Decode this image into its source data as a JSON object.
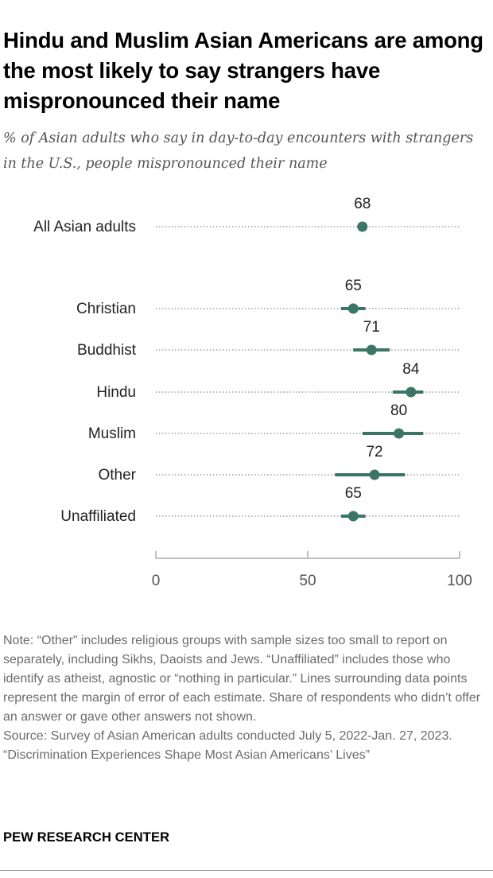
{
  "title": "Hindu and Muslim Asian Americans are among the most likely to say strangers have mispronounced their name",
  "subtitle": "% of Asian adults who say in day-to-day encounters with strangers in the U.S., people mispronounced their name",
  "chart_data": {
    "type": "scatter",
    "variant": "dot plot with margin-of-error lines",
    "categories": [
      "All Asian adults",
      "Christian",
      "Buddhist",
      "Hindu",
      "Muslim",
      "Other",
      "Unaffiliated"
    ],
    "values": [
      68,
      65,
      71,
      84,
      80,
      72,
      65
    ],
    "error_low": [
      67,
      61,
      65,
      78,
      68,
      59,
      61
    ],
    "error_high": [
      69,
      69,
      77,
      88,
      88,
      82,
      69
    ],
    "xlim": [
      0,
      100
    ],
    "xticks": [
      0,
      50,
      100
    ],
    "grid": false,
    "color": "#3b7565"
  },
  "notes": {
    "note": "Note: “Other” includes religious groups with sample sizes too small to report on separately, including Sikhs, Daoists and Jews. “Unaffiliated” includes those who identify as atheist, agnostic or “nothing in particular.” Lines surrounding data points represent the margin of error of each estimate. Share of respondents who didn’t offer an answer or gave other answers not shown.",
    "source": "Source: Survey of Asian American adults conducted July 5, 2022-Jan. 27, 2023.",
    "report": "“Discrimination Experiences Shape Most Asian Americans’ Lives”"
  },
  "brand": "PEW RESEARCH CENTER"
}
